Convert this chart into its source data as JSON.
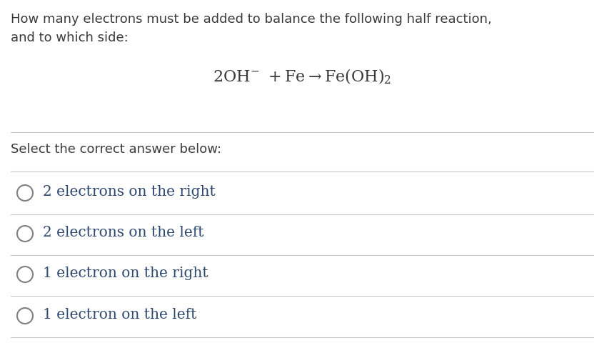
{
  "background_color": "#ffffff",
  "text_color": "#3d3d3d",
  "question_color": "#3a3a3a",
  "option_color": "#2c4770",
  "circle_color": "#808080",
  "divider_color": "#c8c8c8",
  "question_line1": "How many electrons must be added to balance the following half reaction,",
  "question_line2": "and to which side:",
  "select_label": "Select the correct answer below:",
  "options": [
    "2 electrons on the right",
    "2 electrons on the left",
    "1 electron on the right",
    "1 electron on the left"
  ],
  "font_size_question": 13.0,
  "font_size_equation": 16.0,
  "font_size_select": 13.0,
  "font_size_options": 14.5,
  "fig_width": 8.46,
  "fig_height": 5.08,
  "dpi": 100
}
